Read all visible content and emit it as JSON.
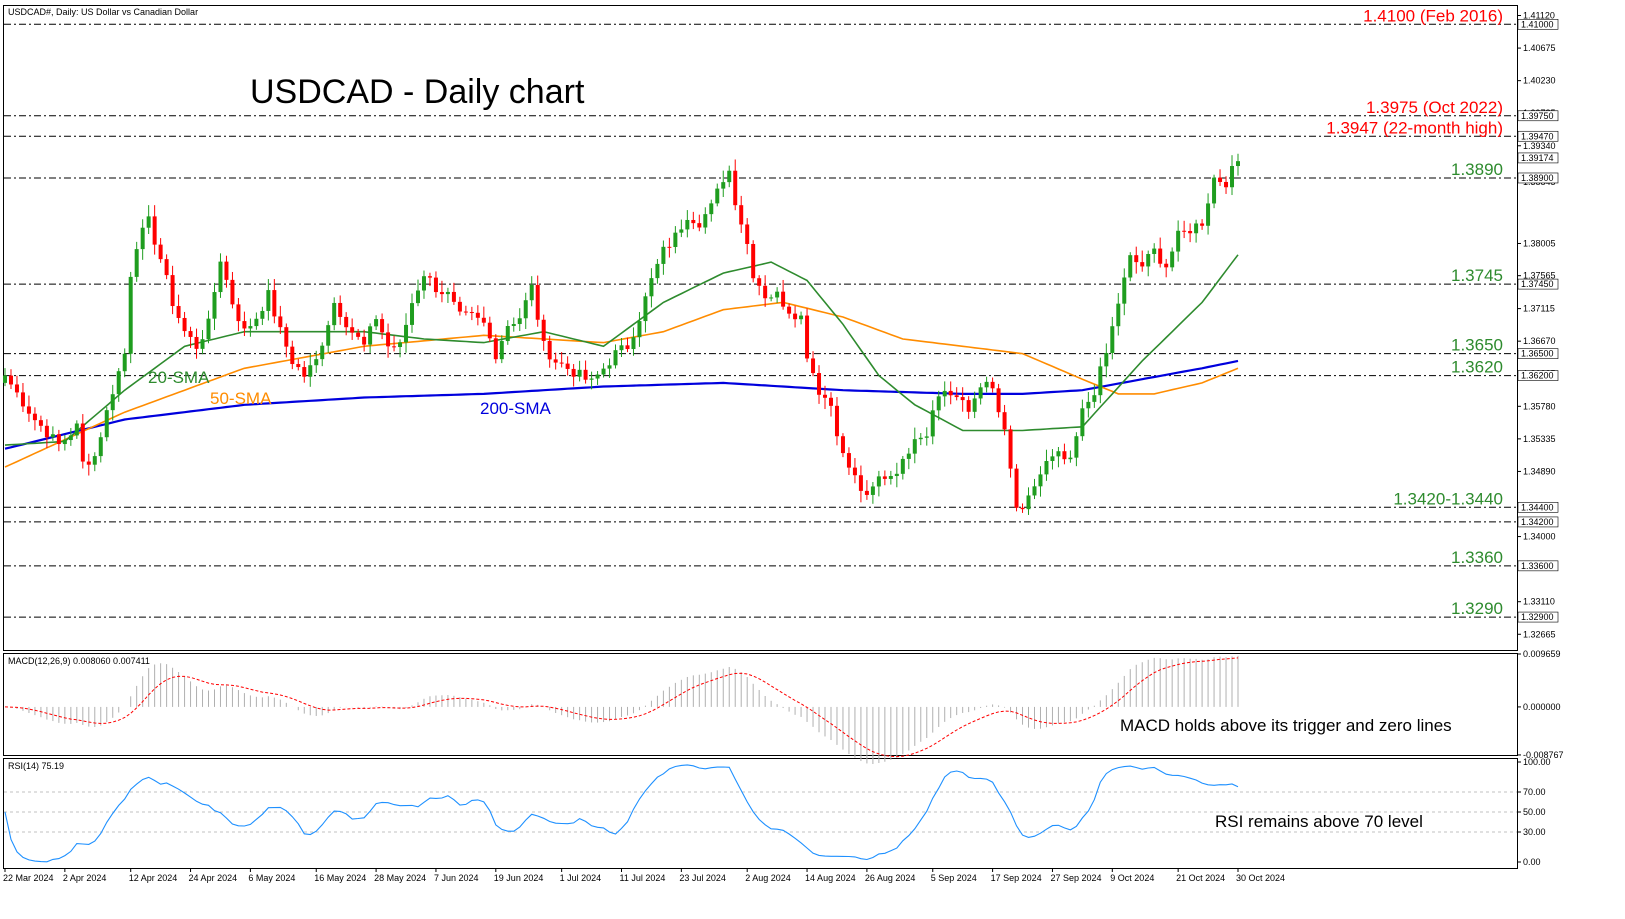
{
  "header": {
    "symbol_info": "USDCAD#, Daily:  US Dollar vs Canadian Dollar",
    "chart_title": "USDCAD - Daily chart"
  },
  "colors": {
    "bull": "#1f9d1f",
    "bear": "#ff0000",
    "sma20": "#2e8b2e",
    "sma50": "#ff8c00",
    "sma200": "#0000dd",
    "level_red": "#ff0000",
    "level_green": "#2e8b2e",
    "rsi": "#1e90ff",
    "macd_signal": "#ff0000",
    "macd_hist": "#b0b0b0"
  },
  "chart_data": [
    {
      "type": "candlestick",
      "title": "USDCAD - Daily chart",
      "ylim": [
        1.3245,
        1.4125
      ],
      "y_ticks": [
        "1.41120",
        "1.40675",
        "1.40230",
        "1.39785",
        "1.39340",
        "1.38845",
        "1.38005",
        "1.37565",
        "1.37115",
        "1.36670",
        "1.36225",
        "1.35780",
        "1.35335",
        "1.34890",
        "1.34000",
        "1.33110",
        "1.32665"
      ],
      "right_labels": [
        "1.41000",
        "1.39750",
        "1.39470",
        "1.39174",
        "1.38900",
        "1.37450",
        "1.36500",
        "1.36200",
        "1.34400",
        "1.34200",
        "1.33600",
        "1.32900"
      ],
      "x_labels": [
        "22 Mar 2024",
        "2 Apr 2024",
        "12 Apr 2024",
        "24 Apr 2024",
        "6 May 2024",
        "16 May 2024",
        "28 May 2024",
        "7 Jun 2024",
        "19 Jun 2024",
        "1 Jul 2024",
        "11 Jul 2024",
        "23 Jul 2024",
        "2 Aug 2024",
        "14 Aug 2024",
        "26 Aug 2024",
        "5 Sep 2024",
        "17 Sep 2024",
        "27 Sep 2024",
        "9 Oct 2024",
        "21 Oct 2024",
        "30 Oct 2024"
      ],
      "levels": [
        {
          "value": 1.41,
          "label": "1.4100 (Feb 2016)",
          "color": "red"
        },
        {
          "value": 1.3975,
          "label": "1.3975 (Oct 2022)",
          "color": "red"
        },
        {
          "value": 1.3947,
          "label": "1.3947 (22-month high)",
          "color": "red"
        },
        {
          "value": 1.389,
          "label": "1.3890",
          "color": "green"
        },
        {
          "value": 1.3745,
          "label": "1.3745",
          "color": "green"
        },
        {
          "value": 1.365,
          "label": "1.3650",
          "color": "green"
        },
        {
          "value": 1.362,
          "label": "1.3620",
          "color": "green"
        },
        {
          "value": 1.344,
          "label": "1.3420-1.3440",
          "color": "green"
        },
        {
          "value": 1.342,
          "label": "",
          "color": "green"
        },
        {
          "value": 1.336,
          "label": "1.3360",
          "color": "green"
        },
        {
          "value": 1.329,
          "label": "1.3290",
          "color": "green"
        }
      ],
      "anchors": [
        [
          0,
          1.362
        ],
        [
          5,
          1.356
        ],
        [
          9,
          1.3525
        ],
        [
          12,
          1.355
        ],
        [
          13,
          1.35
        ],
        [
          15,
          1.351
        ],
        [
          18,
          1.36
        ],
        [
          20,
          1.365
        ],
        [
          21,
          1.376
        ],
        [
          22,
          1.38
        ],
        [
          24,
          1.383
        ],
        [
          26,
          1.378
        ],
        [
          28,
          1.372
        ],
        [
          30,
          1.368
        ],
        [
          32,
          1.366
        ],
        [
          34,
          1.369
        ],
        [
          36,
          1.378
        ],
        [
          38,
          1.372
        ],
        [
          40,
          1.368
        ],
        [
          42,
          1.37
        ],
        [
          44,
          1.373
        ],
        [
          46,
          1.368
        ],
        [
          48,
          1.364
        ],
        [
          50,
          1.362
        ],
        [
          52,
          1.364
        ],
        [
          55,
          1.372
        ],
        [
          58,
          1.368
        ],
        [
          60,
          1.366
        ],
        [
          62,
          1.37
        ],
        [
          64,
          1.366
        ],
        [
          66,
          1.366
        ],
        [
          68,
          1.372
        ],
        [
          70,
          1.376
        ],
        [
          72,
          1.374
        ],
        [
          74,
          1.373
        ],
        [
          76,
          1.37
        ],
        [
          78,
          1.37
        ],
        [
          80,
          1.369
        ],
        [
          82,
          1.365
        ],
        [
          84,
          1.369
        ],
        [
          86,
          1.37
        ],
        [
          88,
          1.374
        ],
        [
          90,
          1.366
        ],
        [
          92,
          1.364
        ],
        [
          94,
          1.363
        ],
        [
          96,
          1.362
        ],
        [
          98,
          1.361
        ],
        [
          100,
          1.363
        ],
        [
          102,
          1.365
        ],
        [
          104,
          1.366
        ],
        [
          106,
          1.37
        ],
        [
          108,
          1.375
        ],
        [
          110,
          1.379
        ],
        [
          112,
          1.381
        ],
        [
          114,
          1.384
        ],
        [
          116,
          1.383
        ],
        [
          118,
          1.385
        ],
        [
          120,
          1.389
        ],
        [
          121,
          1.39
        ],
        [
          122,
          1.386
        ],
        [
          124,
          1.38
        ],
        [
          125,
          1.376
        ],
        [
          127,
          1.373
        ],
        [
          129,
          1.373
        ],
        [
          131,
          1.371
        ],
        [
          133,
          1.37
        ],
        [
          134,
          1.365
        ],
        [
          136,
          1.36
        ],
        [
          138,
          1.358
        ],
        [
          140,
          1.351
        ],
        [
          142,
          1.348
        ],
        [
          144,
          1.345
        ],
        [
          146,
          1.348
        ],
        [
          148,
          1.3485
        ],
        [
          150,
          1.35
        ],
        [
          152,
          1.354
        ],
        [
          154,
          1.354
        ],
        [
          155,
          1.358
        ],
        [
          157,
          1.36
        ],
        [
          159,
          1.359
        ],
        [
          161,
          1.357
        ],
        [
          163,
          1.361
        ],
        [
          165,
          1.36
        ],
        [
          167,
          1.354
        ],
        [
          169,
          1.344
        ],
        [
          170,
          1.343
        ],
        [
          172,
          1.347
        ],
        [
          174,
          1.35
        ],
        [
          176,
          1.351
        ],
        [
          178,
          1.35
        ],
        [
          180,
          1.357
        ],
        [
          182,
          1.36
        ],
        [
          184,
          1.365
        ],
        [
          186,
          1.372
        ],
        [
          188,
          1.378
        ],
        [
          190,
          1.377
        ],
        [
          192,
          1.379
        ],
        [
          194,
          1.377
        ],
        [
          196,
          1.381
        ],
        [
          198,
          1.382
        ],
        [
          200,
          1.383
        ],
        [
          202,
          1.389
        ],
        [
          204,
          1.3885
        ],
        [
          206,
          1.3913
        ]
      ],
      "sma_anchors": {
        "sma20": [
          [
            0,
            1.3525
          ],
          [
            10,
            1.353
          ],
          [
            20,
            1.36
          ],
          [
            30,
            1.366
          ],
          [
            40,
            1.368
          ],
          [
            50,
            1.368
          ],
          [
            60,
            1.368
          ],
          [
            70,
            1.367
          ],
          [
            80,
            1.3665
          ],
          [
            90,
            1.368
          ],
          [
            100,
            1.366
          ],
          [
            110,
            1.372
          ],
          [
            120,
            1.376
          ],
          [
            128,
            1.3775
          ],
          [
            134,
            1.375
          ],
          [
            140,
            1.369
          ],
          [
            146,
            1.362
          ],
          [
            152,
            1.358
          ],
          [
            160,
            1.3545
          ],
          [
            170,
            1.3545
          ],
          [
            180,
            1.355
          ],
          [
            190,
            1.364
          ],
          [
            200,
            1.372
          ],
          [
            206,
            1.3785
          ]
        ],
        "sma50": [
          [
            0,
            1.3495
          ],
          [
            20,
            1.357
          ],
          [
            40,
            1.363
          ],
          [
            60,
            1.366
          ],
          [
            80,
            1.3675
          ],
          [
            100,
            1.3665
          ],
          [
            110,
            1.368
          ],
          [
            120,
            1.371
          ],
          [
            130,
            1.372
          ],
          [
            140,
            1.37
          ],
          [
            150,
            1.367
          ],
          [
            160,
            1.366
          ],
          [
            170,
            1.365
          ],
          [
            180,
            1.3615
          ],
          [
            186,
            1.3595
          ],
          [
            192,
            1.3595
          ],
          [
            200,
            1.361
          ],
          [
            206,
            1.363
          ]
        ],
        "sma200": [
          [
            0,
            1.352
          ],
          [
            20,
            1.356
          ],
          [
            40,
            1.358
          ],
          [
            60,
            1.359
          ],
          [
            80,
            1.3595
          ],
          [
            100,
            1.3605
          ],
          [
            120,
            1.361
          ],
          [
            140,
            1.36
          ],
          [
            160,
            1.3595
          ],
          [
            170,
            1.3595
          ],
          [
            180,
            1.36
          ],
          [
            190,
            1.3615
          ],
          [
            200,
            1.363
          ],
          [
            206,
            1.364
          ]
        ]
      },
      "series": [
        {
          "name": "20-SMA"
        },
        {
          "name": "50-SMA"
        },
        {
          "name": "200-SMA"
        }
      ]
    },
    {
      "type": "macd",
      "title": "MACD(12,26,9) 0.008060 0.007411",
      "ylim": [
        -0.0087767,
        0.009659
      ],
      "y_ticks": [
        "0.009659",
        "0.000000",
        "-0.008767"
      ],
      "annotation": "MACD holds above its trigger and zero lines",
      "last_value": 0.00806,
      "last_signal": 0.007411
    },
    {
      "type": "line",
      "title": "RSI(14) 75.19",
      "ylim": [
        0,
        100
      ],
      "y_ticks": [
        "100.00",
        "70.00",
        "50.00",
        "30.00",
        "0.00"
      ],
      "annotation": "RSI remains above 70 level",
      "last_value": 75.19
    }
  ]
}
